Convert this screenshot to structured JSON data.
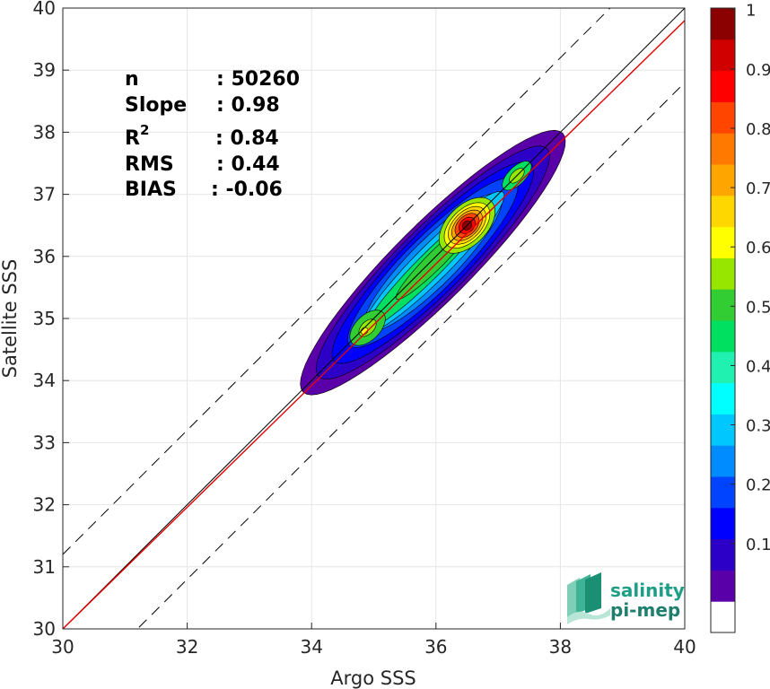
{
  "chart_data": {
    "type": "contour",
    "xlabel": "Argo SSS",
    "ylabel": "Satellite SSS",
    "xlim": [
      30,
      40
    ],
    "ylim": [
      30,
      40
    ],
    "xticks": [
      "30",
      "32",
      "34",
      "36",
      "38",
      "40"
    ],
    "yticks": [
      "30",
      "31",
      "32",
      "33",
      "34",
      "35",
      "36",
      "37",
      "38",
      "39",
      "40"
    ],
    "grid": true,
    "stats": [
      {
        "label": "n",
        "value": ": 50260"
      },
      {
        "label": "Slope",
        "value": ": 0.98"
      },
      {
        "label": "R",
        "sup": "2",
        "value": ": 0.84"
      },
      {
        "label": "RMS",
        "value": ": 0.44"
      },
      {
        "label": "BIAS",
        "value": ": -0.06"
      }
    ],
    "lines": {
      "identity": {
        "slope": 1,
        "intercept": 0,
        "color": "#000000"
      },
      "fit": {
        "slope": 0.98,
        "intercept": 0.6,
        "color": "#e60000"
      },
      "dashed_offsets": [
        1.2,
        -1.2
      ]
    },
    "density_peaks": [
      {
        "x": 36.5,
        "y": 36.5,
        "level": 1.0
      },
      {
        "x": 34.9,
        "y": 34.85,
        "level": 0.65
      },
      {
        "x": 37.3,
        "y": 37.3,
        "level": 0.6
      }
    ],
    "colorbar": {
      "levels": [
        "0.1",
        "0.2",
        "0.3",
        "0.4",
        "0.5",
        "0.6",
        "0.7",
        "0.8",
        "0.9",
        "1"
      ],
      "colors": [
        "#ffffff",
        "#5a00a8",
        "#2d00c8",
        "#0000ff",
        "#0044ff",
        "#008cff",
        "#00c8ff",
        "#00ffff",
        "#20f0b0",
        "#00e060",
        "#32cd32",
        "#96e600",
        "#ffff00",
        "#ffd700",
        "#ffa500",
        "#ff7800",
        "#ff4500",
        "#ff0000",
        "#d00000",
        "#8b0000"
      ]
    }
  },
  "logo": {
    "line1": "salinity",
    "line2": "pi-mep"
  }
}
